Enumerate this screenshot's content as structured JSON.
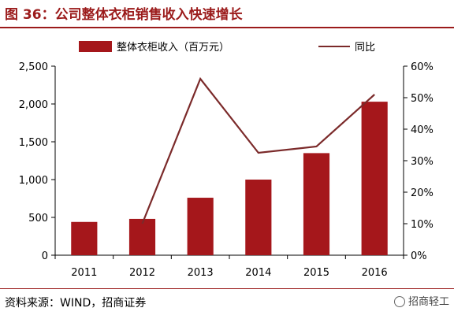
{
  "header": {
    "title": "图 36：公司整体衣柜销售收入快速增长"
  },
  "footer": {
    "source": "资料来源：WIND，招商证券",
    "watermark": "招商轻工",
    "watermark_icon": "wechat-icon"
  },
  "chart_data": {
    "type": "bar",
    "categories": [
      "2011",
      "2012",
      "2013",
      "2014",
      "2015",
      "2016"
    ],
    "series": [
      {
        "name": "整体衣柜收入（百万元）",
        "type": "bar",
        "axis": "left",
        "values": [
          440,
          480,
          760,
          1000,
          1350,
          2030
        ],
        "color": "#a5171b"
      },
      {
        "name": "同比",
        "type": "line",
        "axis": "right",
        "values": [
          null,
          10,
          56,
          32.5,
          34.5,
          51
        ],
        "color": "#7b2a2a"
      }
    ],
    "y_left": {
      "min": 0,
      "max": 2500,
      "ticks": [
        0,
        500,
        1000,
        1500,
        2000,
        2500
      ],
      "tick_labels": [
        "0",
        "500",
        "1,000",
        "1,500",
        "2,000",
        "2,500"
      ]
    },
    "y_right": {
      "min": 0,
      "max": 60,
      "ticks": [
        0,
        10,
        20,
        30,
        40,
        50,
        60
      ],
      "tick_labels": [
        "0%",
        "10%",
        "20%",
        "30%",
        "40%",
        "50%",
        "60%"
      ]
    },
    "legend": {
      "position": "top-center",
      "bar_label": "整体衣柜收入（百万元）",
      "line_label": "同比"
    },
    "grid": false
  }
}
